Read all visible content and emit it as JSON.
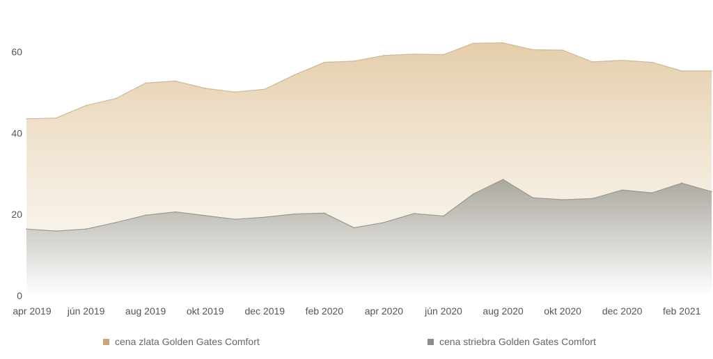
{
  "chart_data": {
    "type": "area",
    "x": [
      "apr 2019",
      "máj 2019",
      "jún 2019",
      "júl 2019",
      "aug 2019",
      "sep 2019",
      "okt 2019",
      "nov 2019",
      "dec 2019",
      "jan 2020",
      "feb 2020",
      "mar 2020",
      "apr 2020",
      "máj 2020",
      "jún 2020",
      "júl 2020",
      "aug 2020",
      "sep 2020",
      "okt 2020",
      "nov 2020",
      "dec 2020",
      "jan 2021",
      "feb 2021",
      "mar 2021"
    ],
    "x_tick_labels": [
      "apr 2019",
      "jún 2019",
      "aug 2019",
      "okt 2019",
      "dec 2019",
      "feb 2020",
      "apr 2020",
      "jún 2020",
      "aug 2020",
      "okt 2020",
      "dec 2020",
      "feb 2021"
    ],
    "ylim": [
      0,
      70
    ],
    "y_ticks": [
      0,
      20,
      40,
      60
    ],
    "grid": false,
    "legend_position": "bottom",
    "series": [
      {
        "name": "cena zlata Golden Gates Comfort",
        "color": "#c9a77a",
        "values": [
          43.5,
          43.7,
          46.8,
          48.5,
          52.3,
          52.8,
          51.0,
          50.1,
          50.8,
          54.3,
          57.4,
          57.7,
          59.1,
          59.4,
          59.3,
          62.1,
          62.2,
          60.5,
          60.4,
          57.5,
          57.9,
          57.4,
          55.3,
          55.3
        ]
      },
      {
        "name": "cena striebra Golden Gates Comfort",
        "color": "#8c8c8c",
        "values": [
          16.4,
          15.9,
          16.4,
          18.0,
          19.8,
          20.6,
          19.7,
          18.8,
          19.3,
          20.1,
          20.3,
          16.7,
          18.0,
          20.2,
          19.6,
          25.0,
          28.6,
          24.1,
          23.6,
          23.9,
          26.0,
          25.3,
          27.7,
          25.6
        ]
      }
    ]
  }
}
